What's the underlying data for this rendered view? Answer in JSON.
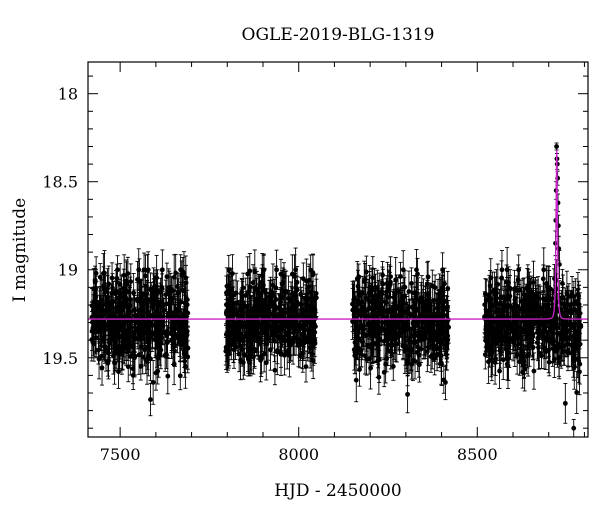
{
  "chart_data": {
    "type": "scatter",
    "title": "OGLE-2019-BLG-1319",
    "xlabel": "HJD - 2450000",
    "ylabel": "I magnitude",
    "xlim": [
      7410,
      8810
    ],
    "ylim": [
      19.95,
      17.82
    ],
    "y_inverted": true,
    "xticks": [
      7500,
      8000,
      8500
    ],
    "yticks": [
      18,
      18.5,
      19,
      19.5
    ],
    "yticks_labels": [
      "18",
      "18.5",
      "19",
      "19.5"
    ],
    "grid": false,
    "legend": "none",
    "colors": {
      "data": "#000000",
      "model": "#cc22cc"
    },
    "series": [
      {
        "style": "points-with-error-bars",
        "seasons": [
          {
            "x_range": [
              7420,
              7690
            ],
            "mag_center": 19.28,
            "mag_scatter": 0.13,
            "err_typ": 0.1
          },
          {
            "x_range": [
              7795,
              8050
            ],
            "mag_center": 19.28,
            "mag_scatter": 0.12,
            "err_typ": 0.1
          },
          {
            "x_range": [
              8150,
              8420
            ],
            "mag_center": 19.3,
            "mag_scatter": 0.13,
            "err_typ": 0.1
          },
          {
            "x_range": [
              8520,
              8790
            ],
            "mag_center": 19.3,
            "mag_scatter": 0.12,
            "err_typ": 0.1
          }
        ],
        "event_points": [
          {
            "x": 8722,
            "y": 18.3,
            "err": 0.02
          },
          {
            "x": 8723,
            "y": 18.37,
            "err": 0.03
          },
          {
            "x": 8724,
            "y": 18.4,
            "err": 0.03
          },
          {
            "x": 8725,
            "y": 18.48,
            "err": 0.04
          },
          {
            "x": 8721,
            "y": 18.55,
            "err": 0.05
          },
          {
            "x": 8726,
            "y": 18.62,
            "err": 0.05
          },
          {
            "x": 8720,
            "y": 18.72,
            "err": 0.06
          },
          {
            "x": 8727,
            "y": 18.75,
            "err": 0.06
          },
          {
            "x": 8719,
            "y": 18.85,
            "err": 0.07
          },
          {
            "x": 8728,
            "y": 18.88,
            "err": 0.07
          },
          {
            "x": 8730,
            "y": 18.97,
            "err": 0.08
          },
          {
            "x": 8716,
            "y": 19.05,
            "err": 0.08
          },
          {
            "x": 8770,
            "y": 19.9,
            "err": 0.05
          }
        ]
      },
      {
        "style": "line",
        "model": {
          "baseline": 19.28,
          "peak_mag": 18.32,
          "t0": 8722.5,
          "tE": 3.5
        }
      }
    ]
  }
}
